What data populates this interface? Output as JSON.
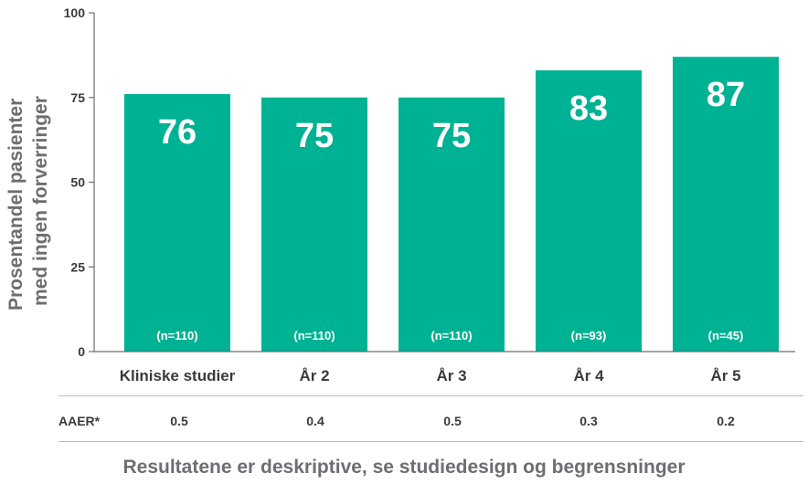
{
  "chart_data": {
    "type": "bar",
    "categories": [
      "Kliniske studier",
      "År 2",
      "År 3",
      "År 4",
      "År 5"
    ],
    "values": [
      76,
      75,
      75,
      83,
      87
    ],
    "n_labels": [
      "(n=110)",
      "(n=110)",
      "(n=110)",
      "(n=93)",
      "(n=45)"
    ],
    "ylabel_lines": [
      "Prosentandel pasienter",
      "med ingen forverringer"
    ],
    "yticks": [
      0,
      25,
      50,
      75,
      100
    ],
    "ylim": [
      0,
      100
    ],
    "bar_color": "#00b294",
    "grid": false,
    "legend": "none"
  },
  "aaer": {
    "label": "AAER*",
    "values": [
      "0.5",
      "0.4",
      "0.5",
      "0.3",
      "0.2"
    ]
  },
  "footnote": "Resultatene er deskriptive, se studiedesign og begrensninger"
}
